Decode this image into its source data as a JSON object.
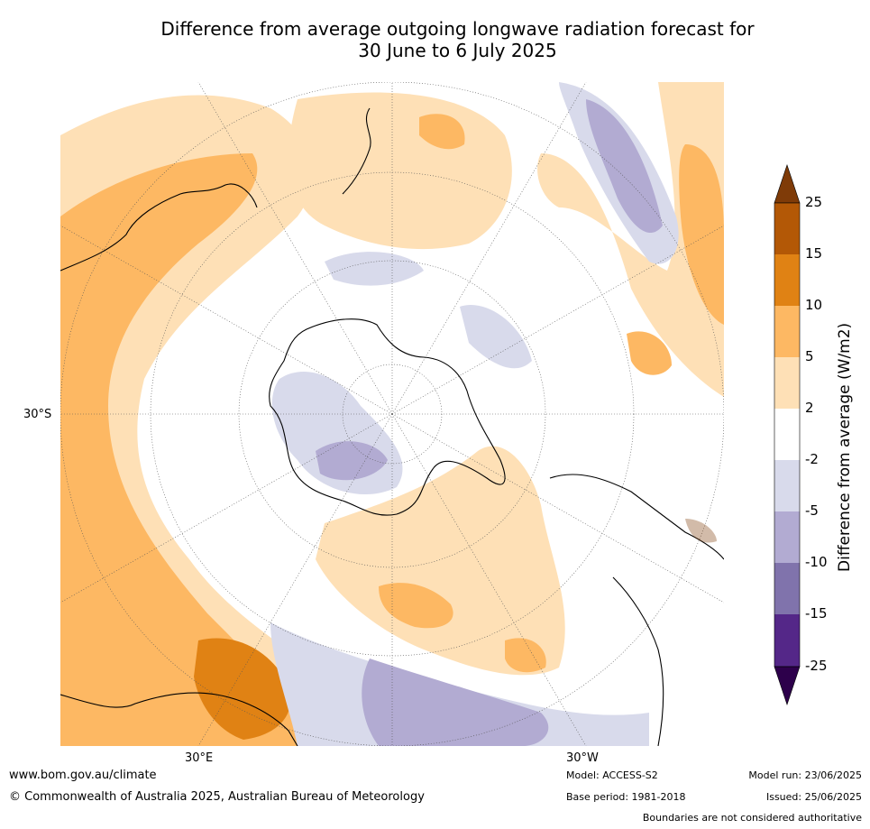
{
  "title": {
    "line1": "Difference from average outgoing longwave radiation forecast for",
    "line2": "30 June to 6 July 2025"
  },
  "map": {
    "projection": "south-polar",
    "lat_label_left": "30°S",
    "lon_labels": [
      "30°E",
      "30°W"
    ]
  },
  "colorbar": {
    "title": "Difference from average (W/m2)",
    "ticks": [
      "25",
      "15",
      "10",
      "5",
      "2",
      "-2",
      "-5",
      "-10",
      "-15",
      "-25"
    ],
    "colors": {
      "above_25": "#7f3b08",
      "15_25": "#b35806",
      "10_15": "#e08214",
      "5_10": "#fdb863",
      "2_5": "#fee0b6",
      "-2_2": "#ffffff",
      "-5_-2": "#d8daeb",
      "-10_-5": "#b2abd2",
      "-15_-10": "#8073ac",
      "-25_-15": "#542788",
      "below_-25": "#2d004b"
    }
  },
  "footer": {
    "website": "www.bom.gov.au/climate",
    "copyright": "© Commonwealth of Australia 2025, Australian Bureau of Meteorology",
    "model": "Model: ACCESS-S2",
    "base_period": "Base period: 1981-2018",
    "model_run": "Model run: 23/06/2025",
    "issued": "Issued: 25/06/2025",
    "disclaimer": "Boundaries are not considered authoritative"
  }
}
